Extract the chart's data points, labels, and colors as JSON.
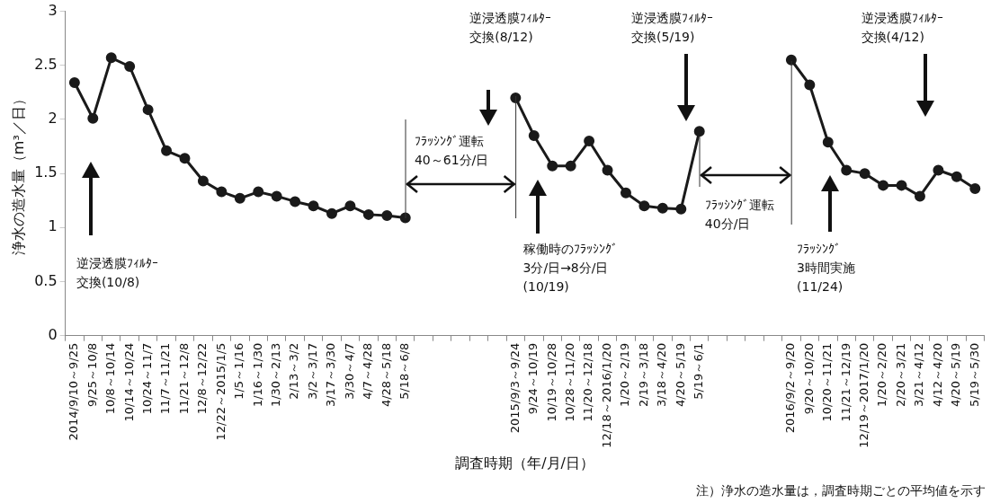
{
  "chart_data": {
    "type": "line",
    "xlabel": "調査時期（年/月/日）",
    "ylabel": "浄水の造水量（m³／日）",
    "categories": [
      "2014/9/10～9/25",
      "9/25～10/8",
      "10/8～10/14",
      "10/14～10/24",
      "10/24～11/7",
      "11/7～11/21",
      "11/21～12/8",
      "12/8～12/22",
      "12/22～2015/1/5",
      "1/5～1/16",
      "1/16～1/30",
      "1/30～2/13",
      "2/13～3/2",
      "3/2～3/17",
      "3/17～3/30",
      "3/30～4/7",
      "4/7～4/28",
      "4/28～5/18",
      "5/18～6/8",
      null,
      null,
      null,
      null,
      null,
      "2015/9/3～9/24",
      "9/24～10/19",
      "10/19～10/28",
      "10/28～11/20",
      "11/20～12/18",
      "12/18～2016/1/20",
      "1/20～2/19",
      "2/19～3/18",
      "3/18～4/20",
      "4/20～5/19",
      "5/19～6/1",
      null,
      null,
      null,
      null,
      "2016/9/2～9/20",
      "9/20～10/20",
      "10/20～11/21",
      "11/21～12/19",
      "12/19～2017/1/20",
      "1/20～2/20",
      "2/20～3/21",
      "3/21～4/12",
      "4/12～4/20",
      "4/20～5/19",
      "5/19～5/30"
    ],
    "series": [
      {
        "color": "#1a1a1a",
        "values": [
          2.34,
          2.01,
          2.57,
          2.49,
          2.09,
          1.71,
          1.64,
          1.43,
          1.33,
          1.27,
          1.33,
          1.29,
          1.24,
          1.2,
          1.13,
          1.2,
          1.12,
          1.11,
          1.09,
          null,
          null,
          null,
          null,
          null,
          2.2,
          1.85,
          1.57,
          1.57,
          1.8,
          1.53,
          1.32,
          1.2,
          1.18,
          1.17,
          1.89,
          null,
          null,
          null,
          null,
          2.55,
          2.32,
          1.79,
          1.53,
          1.5,
          1.39,
          1.39,
          1.29,
          1.53,
          1.47,
          1.36
        ]
      }
    ],
    "ylim": [
      0,
      3
    ],
    "yticks": [
      0,
      0.5,
      1,
      1.5,
      2,
      2.5,
      3
    ],
    "grid": false,
    "legend": false,
    "marker": "circle",
    "line_style": "solid",
    "annotations": [
      "逆浸透膜ﾌｨﾙﾀｰ交換(10/8)",
      "ﾌﾗｯｼﾝｸﾞ運転40～61分/日",
      "逆浸透膜ﾌｨﾙﾀｰ交換(8/12)",
      "稼働時のﾌﾗｯｼﾝｸﾞ3分/日→8分/日(10/19)",
      "逆浸透膜ﾌｨﾙﾀｰ交換(5/19)",
      {
        "text": "ﾌﾗｯｼﾝｸﾞ運転40分/日",
        "x": "5/19～6/1",
        "y": 1.89
      },
      "ﾌﾗｯｼﾝｸﾞ3時間実施(11/24)",
      "逆浸透膜ﾌｨﾙﾀｰ交換(4/12)",
      "注）浄水の造水量は，調査時期ごとの平均値を示す"
    ]
  }
}
